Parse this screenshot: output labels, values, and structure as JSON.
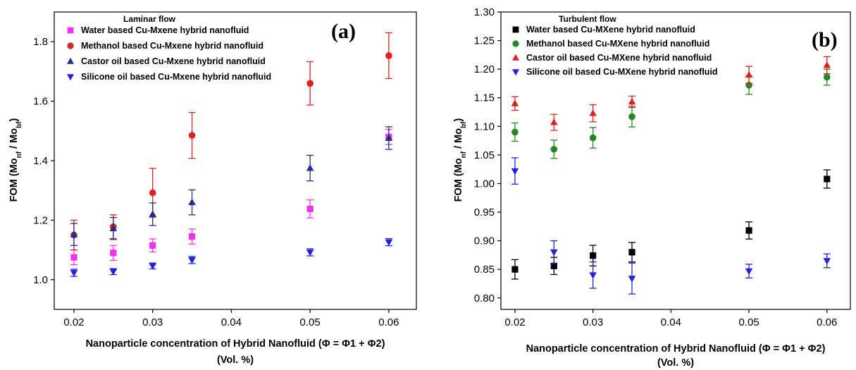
{
  "chart_data": [
    {
      "type": "scatter",
      "panel_label": "(a)",
      "legend_title": "Laminar flow",
      "xlabel_line1": "Nanoparticle concentration of Hybrid Nanofluid (Φ = Φ1 + Φ2)",
      "xlabel_line2": "(Vol. %)",
      "ylabel": "FOM (Mo_nf / Mo_bf)",
      "ylabel_main": "FOM (Mo",
      "ylabel_sub1": "nf",
      "ylabel_mid": " / Mo",
      "ylabel_sub2": "bf",
      "ylabel_end": ")",
      "xlim": [
        0.0175,
        0.0635
      ],
      "ylim": [
        0.9,
        1.9
      ],
      "xticks": [
        0.02,
        0.03,
        0.04,
        0.05,
        0.06
      ],
      "xtick_labels": [
        "0.02",
        "0.03",
        "0.04",
        "0.05",
        "0.06"
      ],
      "yticks": [
        1.0,
        1.2,
        1.4,
        1.6,
        1.8
      ],
      "ytick_labels": [
        "1.0",
        "1.2",
        "1.4",
        "1.6",
        "1.8"
      ],
      "legend_position": "top-left",
      "x": [
        0.02,
        0.025,
        0.03,
        0.035,
        0.05,
        0.06
      ],
      "series": [
        {
          "name": "Water based Cu-Mxene hybrid nanofluid",
          "marker": "square",
          "color": "#ee33ee",
          "values": [
            1.075,
            1.09,
            1.115,
            1.145,
            1.238,
            1.48
          ],
          "errors": [
            0.025,
            0.025,
            0.022,
            0.025,
            0.03,
            0.025
          ]
        },
        {
          "name": "Methanol based Cu-Mxene hybrid nanofluid",
          "marker": "circle",
          "color": "#dd2222",
          "values": [
            1.15,
            1.178,
            1.292,
            1.485,
            1.66,
            1.753
          ],
          "errors": [
            0.05,
            0.04,
            0.082,
            0.077,
            0.073,
            0.077
          ]
        },
        {
          "name": "Castor oil based Cu-Mxene hybrid nanofluid",
          "marker": "triangle-up",
          "color": "#1f2f8f",
          "values": [
            1.152,
            1.172,
            1.22,
            1.26,
            1.375,
            1.476
          ],
          "errors": [
            0.037,
            0.037,
            0.038,
            0.042,
            0.043,
            0.038
          ]
        },
        {
          "name": "Silicone oil based Cu-Mxene hybrid nanofluid",
          "marker": "triangle-down",
          "color": "#2222dd",
          "values": [
            1.023,
            1.027,
            1.046,
            1.066,
            1.092,
            1.126
          ],
          "errors": [
            0.012,
            0.01,
            0.01,
            0.012,
            0.012,
            0.012
          ]
        }
      ]
    },
    {
      "type": "scatter",
      "panel_label": "(b)",
      "legend_title": "Turbulent flow",
      "xlabel_line1": "Nanoparticle concentration of Hybrid Nanofluid (Φ = Φ1 + Φ2)",
      "xlabel_line2": "(Vol. %)",
      "ylabel": "FOM (Mo_nf / Mo_bf)",
      "ylabel_main": "FOM (Mo",
      "ylabel_sub1": "nf",
      "ylabel_mid": " / Mo",
      "ylabel_sub2": "bf",
      "ylabel_end": ")",
      "xlim": [
        0.0182,
        0.063
      ],
      "ylim": [
        0.78,
        1.3
      ],
      "xticks": [
        0.02,
        0.03,
        0.04,
        0.05,
        0.06
      ],
      "xtick_labels": [
        "0.02",
        "0.03",
        "0.04",
        "0.05",
        "0.06"
      ],
      "yticks": [
        0.8,
        0.85,
        0.9,
        0.95,
        1.0,
        1.05,
        1.1,
        1.15,
        1.2,
        1.25,
        1.3
      ],
      "ytick_labels": [
        "0.80",
        "0.85",
        "0.90",
        "0.95",
        "1.00",
        "1.05",
        "1.10",
        "1.15",
        "1.20",
        "1.25",
        "1.30"
      ],
      "legend_position": "top-left",
      "x": [
        0.02,
        0.025,
        0.03,
        0.035,
        0.05,
        0.06
      ],
      "series": [
        {
          "name": "Water based Cu-MXene hybrid nanofluid",
          "marker": "square",
          "color": "#000000",
          "values": [
            0.85,
            0.856,
            0.874,
            0.88,
            0.918,
            1.008
          ],
          "errors": [
            0.017,
            0.015,
            0.018,
            0.017,
            0.015,
            0.016
          ]
        },
        {
          "name": "Methanol based Cu-MXene hybrid nanofluid",
          "marker": "circle",
          "color": "#228822",
          "values": [
            1.09,
            1.06,
            1.08,
            1.117,
            1.172,
            1.186
          ],
          "errors": [
            0.016,
            0.016,
            0.018,
            0.018,
            0.016,
            0.014
          ]
        },
        {
          "name": "Castor oil based Cu-MXene hybrid nanofluid",
          "marker": "triangle-up",
          "color": "#dd2222",
          "values": [
            1.14,
            1.107,
            1.123,
            1.143,
            1.19,
            1.207
          ],
          "errors": [
            0.012,
            0.014,
            0.015,
            0.01,
            0.015,
            0.015
          ]
        },
        {
          "name": "Silicone oil based Cu-MXene hybrid nanofluid",
          "marker": "triangle-down",
          "color": "#2222dd",
          "values": [
            1.022,
            0.88,
            0.84,
            0.834,
            0.847,
            0.865
          ],
          "errors": [
            0.023,
            0.02,
            0.023,
            0.027,
            0.012,
            0.012
          ]
        }
      ]
    }
  ]
}
